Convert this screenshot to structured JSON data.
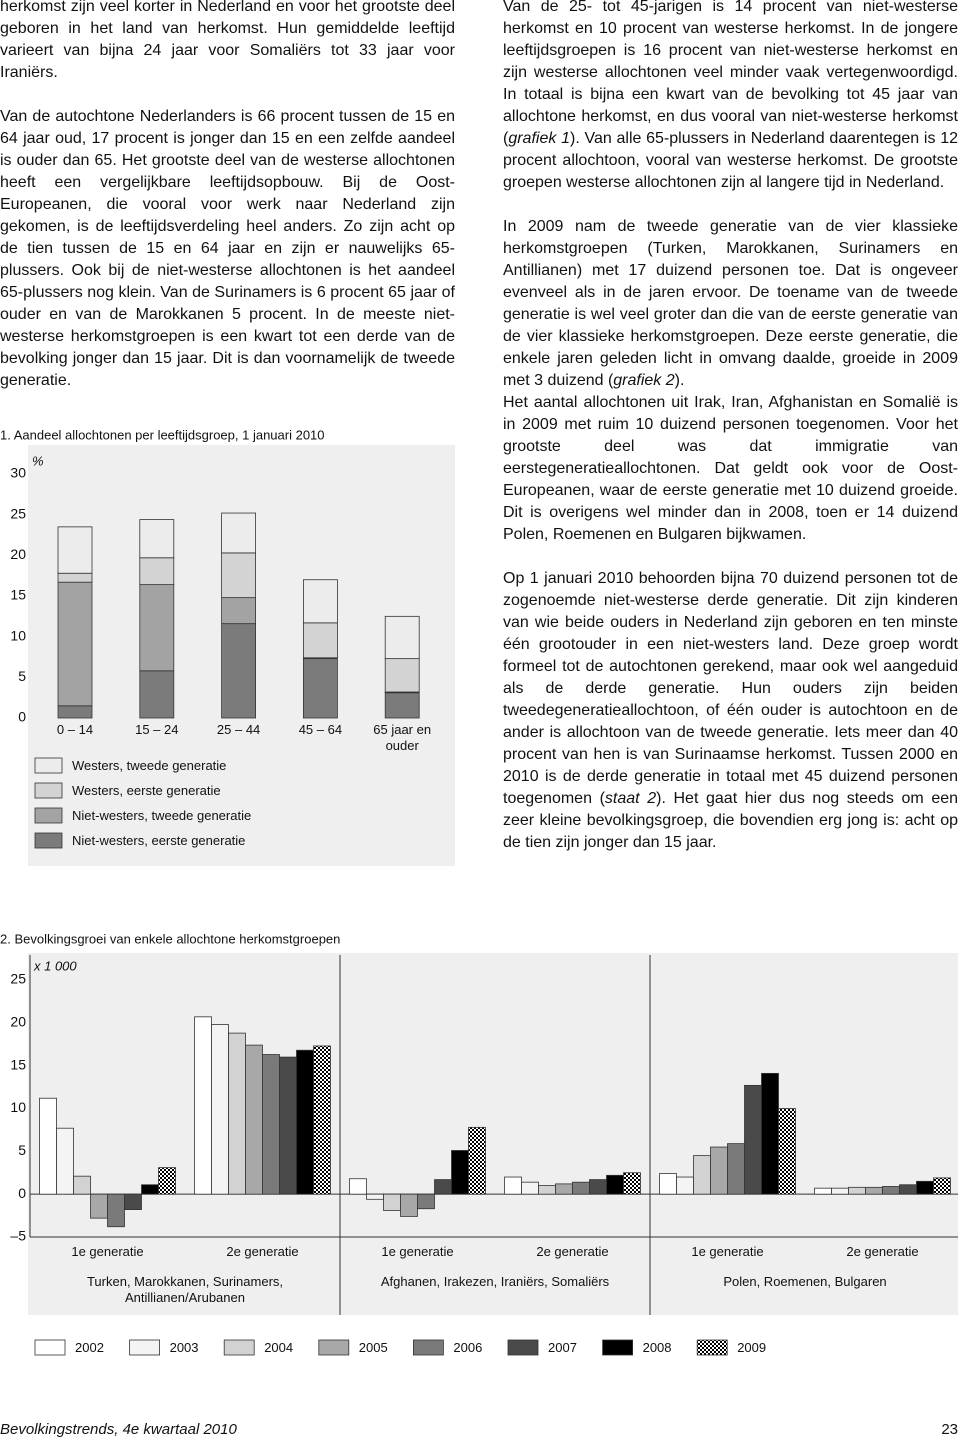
{
  "left_column": {
    "paragraphs": [
      [
        "herkomst zijn veel korter in Nederland en voor het grootste deel geboren in het land van herkomst. Hun gemiddelde leeftijd varieert van bijna 24 jaar voor Somaliërs tot 33 jaar voor Iraniërs."
      ],
      [
        "Van de autochtone Nederlanders is 66 procent tussen de 15 en 64 jaar oud, 17 procent is jonger dan 15 en een zelfde aandeel is ouder dan 65. Het grootste deel van de westerse allochtonen heeft een vergelijkbare leeftijdsopbouw. Bij de Oost-Europeanen, die vooral voor werk naar Nederland zijn gekomen, is de leeftijdsverdeling heel anders. Zo zijn acht op de tien tussen de 15 en 64 jaar en zijn er nauwelijks 65-plussers. Ook bij de niet-westerse allochtonen is het aandeel 65-plussers nog klein. Van de Surinamers is 6 procent 65 jaar of ouder en van de Marokkanen 5 procent. In de meeste niet-westerse herkomstgroepen is een kwart tot een derde van de bevolking jonger dan 15 jaar. Dit is dan voornamelijk de tweede generatie."
      ]
    ]
  },
  "right_column": {
    "paragraphs": [
      [
        "Van de 25- tot 45-jarigen is 14 procent van niet-westerse herkomst en 10 procent van westerse herkomst. In de jongere leeftijdsgroepen is 16 procent van niet-westerse herkomst en zijn westerse allochtonen veel minder vaak vertegenwoordigd. In totaal is bijna een kwart van de bevolking tot 45 jaar van allochtone herkomst, en dus vooral van niet-westerse herkomst (",
        {
          "text": "grafiek 1",
          "italic": true
        },
        "). Van alle 65-plussers in Nederland daarentegen is 12 procent allochtoon, vooral van westerse herkomst. De grootste groepen westerse allochtonen zijn al langere tijd in Nederland."
      ],
      [
        "In 2009 nam de tweede generatie van de vier klassieke herkomstgroepen (Turken, Marokkanen, Surinamers en Antillianen) met 17 duizend personen toe. Dat is ongeveer evenveel als in de jaren ervoor. De toename van de tweede generatie is wel veel groter dan die van de eerste generatie van de vier klassieke herkomstgroepen. Deze eerste generatie, die enkele jaren geleden licht in omvang daalde, groeide in 2009 met 3 duizend (",
        {
          "text": "grafiek 2",
          "italic": true
        },
        ")."
      ],
      [
        "Het aantal allochtonen uit Irak, Iran, Afghanistan en Somalië is in 2009 met ruim 10 duizend personen toegenomen. Voor het grootste deel was dat immigratie van eerstegeneratieallochtonen. Dat geldt ook voor de Oost-Europeanen, waar de eerste generatie met 10 duizend groeide. Dit is overigens wel minder dan in 2008, toen er 14 duizend Polen, Roemenen en Bulgaren bijkwamen."
      ],
      [
        "Op 1 januari 2010 behoorden bijna 70 duizend personen tot de zogenoemde niet-westerse derde generatie. Dit zijn kinderen van wie beide ouders in Nederland zijn geboren en ten minste één grootouder in een niet-westers land. Deze groep wordt formeel tot de autochtonen gerekend, maar ook wel aangeduid als de derde generatie. Hun ouders zijn beiden tweedegeneratieallochtoon, of één ouder is autochtoon en de ander is allochtoon van de tweede generatie. Iets meer dan 40 procent van hen is van Surinaamse herkomst. Tussen 2000 en 2010 is de derde generatie in totaal met 45 duizend personen toegenomen (",
        {
          "text": "staat 2",
          "italic": true
        },
        "). Het gaat hier dus nog steeds om een zeer kleine bevolkingsgroep, die bovendien erg jong is: acht op de tien zijn jonger dan 15 jaar."
      ]
    ]
  },
  "chart_data": [
    {
      "type": "bar",
      "stacked": true,
      "title": "1. Aandeel allochtonen per leeftijdsgroep, 1 januari 2010",
      "unit": "%",
      "categories": [
        "0 – 14",
        "15 – 24",
        "25 – 44",
        "45 – 64",
        "65 jaar en ouder"
      ],
      "series": [
        {
          "name": "Westers, tweede generatie",
          "color": "#ececec",
          "values": [
            5.7,
            4.7,
            4.9,
            5.3,
            5.2
          ]
        },
        {
          "name": "Westers, eerste generatie",
          "color": "#d3d3d3",
          "values": [
            1.1,
            3.3,
            5.5,
            4.3,
            4.1
          ]
        },
        {
          "name": "Niet-westers, tweede generatie",
          "color": "#a3a3a3",
          "values": [
            15.2,
            10.6,
            3.2,
            0.1,
            0.1
          ]
        },
        {
          "name": "Niet-westers, eerste generatie",
          "color": "#7b7b7b",
          "values": [
            1.5,
            5.8,
            11.6,
            7.3,
            3.1
          ]
        }
      ],
      "ylim": [
        0,
        30
      ],
      "yticks": [
        0,
        5,
        10,
        15,
        20,
        25,
        30
      ]
    },
    {
      "type": "bar",
      "stacked": false,
      "title": "2. Bevolkingsgroei van enkele allochtone herkomstgroepen",
      "unit": "x 1 000",
      "categories": [
        "1e generatie",
        "2e generatie",
        "1e generatie",
        "2e generatie",
        "1e generatie",
        "2e generatie"
      ],
      "groups": [
        "Turken, Marokkanen, Surinamers, Antillianen/Arubanen",
        "Afghanen, Irakezen, Iraniërs, Somaliërs",
        "Polen, Roemenen, Bulgaren"
      ],
      "series": [
        {
          "name": "2002",
          "color": "#ffffff",
          "values": [
            11.2,
            20.7,
            1.8,
            2.0,
            2.4,
            0.7
          ]
        },
        {
          "name": "2003",
          "color": "#f4f4f4",
          "values": [
            7.7,
            19.8,
            -0.6,
            1.4,
            2.0,
            0.7
          ]
        },
        {
          "name": "2004",
          "color": "#d2d2d2",
          "values": [
            2.1,
            18.8,
            -1.9,
            1.0,
            4.5,
            0.8
          ]
        },
        {
          "name": "2005",
          "color": "#a8a8a8",
          "values": [
            -2.8,
            17.4,
            -2.6,
            1.2,
            5.5,
            0.8
          ]
        },
        {
          "name": "2006",
          "color": "#7a7a7a",
          "values": [
            -3.8,
            16.3,
            -1.7,
            1.4,
            5.9,
            0.9
          ]
        },
        {
          "name": "2007",
          "color": "#4a4a4a",
          "values": [
            -1.8,
            16.0,
            1.7,
            1.7,
            12.7,
            1.1
          ]
        },
        {
          "name": "2008",
          "color": "#000000",
          "values": [
            1.1,
            16.8,
            5.1,
            2.2,
            14.1,
            1.5
          ]
        },
        {
          "name": "2009",
          "color": "#000000",
          "checkered": true,
          "values": [
            3.1,
            17.3,
            7.8,
            2.5,
            10.0,
            1.9
          ]
        }
      ],
      "ylim": [
        -5,
        25
      ],
      "yticks": [
        {
          "value": -5,
          "label": "–5"
        },
        0,
        5,
        10,
        15,
        20,
        25
      ]
    }
  ],
  "footer": {
    "publication": "Bevolkingstrends, 4e kwartaal 2010",
    "page": "23"
  }
}
